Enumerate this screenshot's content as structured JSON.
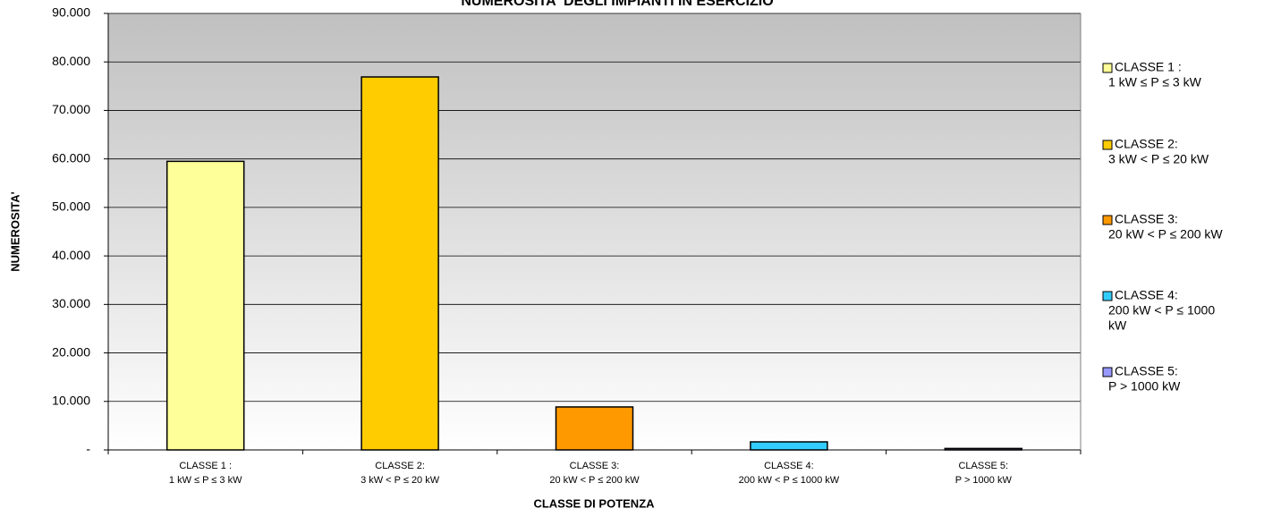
{
  "chart_data": {
    "type": "bar",
    "title": "NUMEROSITA' DEGLI IMPIANTI IN ESERCIZIO",
    "x_label": "CLASSE DI POTENZA",
    "y_label": "NUMEROSITA'",
    "categories": [
      [
        "CLASSE 1 :",
        "1 kW ≤ P ≤ 3 kW"
      ],
      [
        "CLASSE 2:",
        "3 kW < P ≤ 20 kW"
      ],
      [
        "CLASSE 3:",
        "20 kW < P ≤ 200 kW"
      ],
      [
        "CLASSE 4:",
        "200 kW < P ≤ 1000 kW"
      ],
      [
        "CLASSE 5:",
        "P > 1000 kW"
      ]
    ],
    "legend": [
      [
        "CLASSE 1 :",
        "1 kW ≤ P ≤ 3 kW"
      ],
      [
        "CLASSE 2:",
        "3 kW < P ≤ 20 kW"
      ],
      [
        "CLASSE 3:",
        "20 kW < P ≤ 200 kW"
      ],
      [
        "CLASSE 4:",
        "200 kW < P ≤ 1000",
        "kW"
      ],
      [
        "CLASSE 5:",
        "P > 1000 kW"
      ]
    ],
    "values": [
      59500,
      76900,
      8860,
      1660,
      300
    ],
    "colors": [
      "#ffff99",
      "#ffcc00",
      "#ff9900",
      "#33ccff",
      "#9999ff"
    ],
    "ylim": [
      0,
      90000
    ],
    "yticks": [
      {
        "value": 0,
        "label": "-"
      },
      {
        "value": 10000,
        "label": "10.000"
      },
      {
        "value": 20000,
        "label": "20.000"
      },
      {
        "value": 30000,
        "label": "30.000"
      },
      {
        "value": 40000,
        "label": "40.000"
      },
      {
        "value": 50000,
        "label": "50.000"
      },
      {
        "value": 60000,
        "label": "60.000"
      },
      {
        "value": 70000,
        "label": "70.000"
      },
      {
        "value": 80000,
        "label": "80.000"
      },
      {
        "value": 90000,
        "label": "90.000"
      }
    ],
    "grid": true
  }
}
